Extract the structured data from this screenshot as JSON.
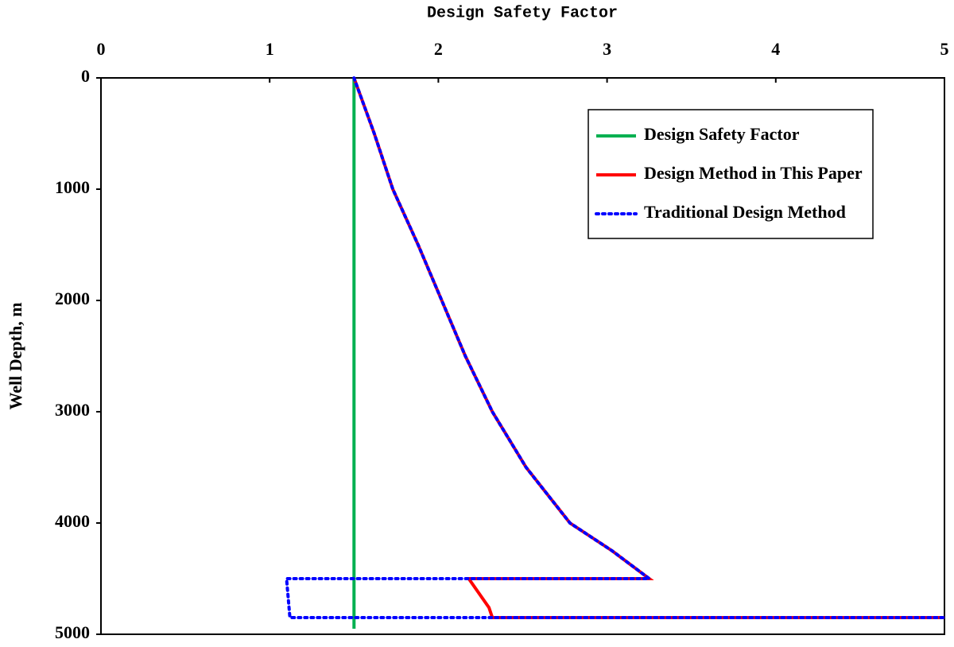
{
  "chart_data": {
    "type": "line",
    "xlabel": "Design Safety Factor",
    "ylabel": "Well Depth, m",
    "xlim": [
      0,
      5
    ],
    "xticks": [
      0,
      1,
      2,
      3,
      4,
      5
    ],
    "ylim": [
      0,
      5000
    ],
    "yticks": [
      0,
      1000,
      2000,
      3000,
      4000,
      5000
    ],
    "y_inverted": true,
    "x_axis_position": "top",
    "legend": "upper right",
    "series": [
      {
        "name": "Design Safety Factor",
        "color": "#00b050",
        "style": "solid",
        "x": [
          1.5,
          1.5
        ],
        "y": [
          0,
          4950
        ]
      },
      {
        "name": "Design Method in This Paper",
        "color": "#ff0000",
        "style": "solid",
        "x": [
          1.5,
          1.62,
          1.73,
          1.88,
          2.02,
          2.16,
          2.32,
          2.52,
          2.78,
          3.03,
          3.25,
          2.18,
          2.3,
          2.32,
          5
        ],
        "y": [
          0,
          500,
          1000,
          1500,
          2000,
          2500,
          3000,
          3500,
          4000,
          4250,
          4500,
          4500,
          4760,
          4850,
          4850
        ]
      },
      {
        "name": "Traditional Design Method",
        "color": "#0000ff",
        "style": "dotted",
        "x": [
          1.5,
          1.62,
          1.73,
          1.88,
          2.02,
          2.16,
          2.32,
          2.52,
          2.78,
          3.03,
          3.25,
          1.1,
          1.12,
          5
        ],
        "y": [
          0,
          500,
          1000,
          1500,
          2000,
          2500,
          3000,
          3500,
          4000,
          4250,
          4500,
          4500,
          4850,
          4850
        ]
      }
    ]
  }
}
